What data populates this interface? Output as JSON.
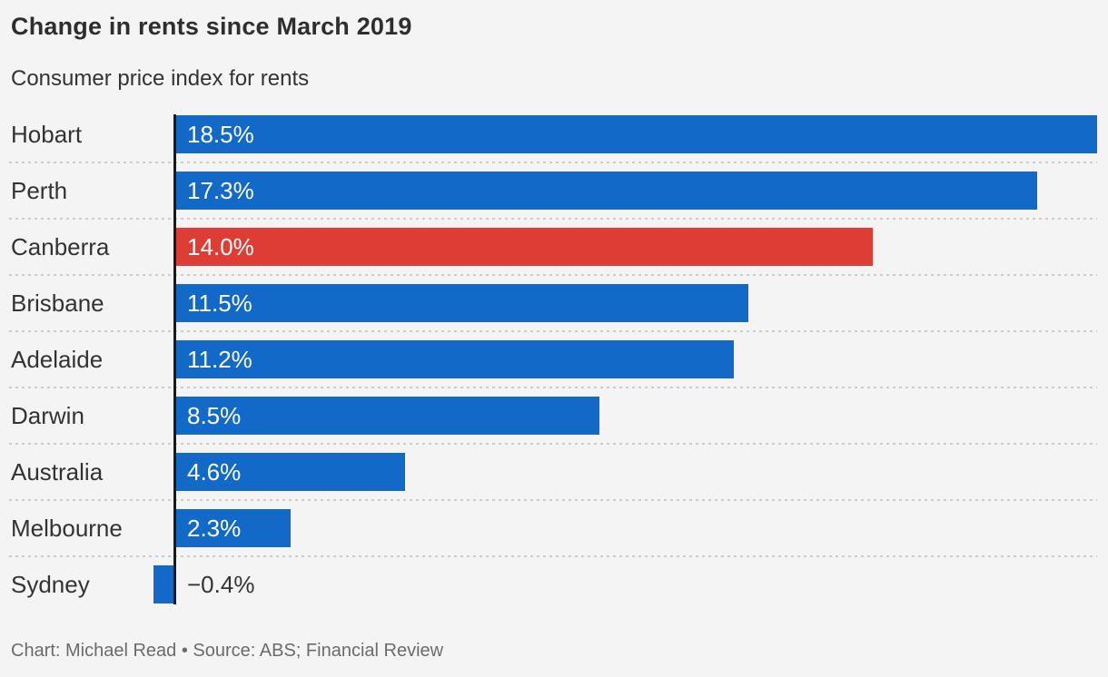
{
  "header": {
    "title": "Change in rents since March 2019",
    "subtitle": "Consumer price index for rents"
  },
  "footer": {
    "attribution": "Chart: Michael Read • Source: ABS; Financial Review"
  },
  "colors": {
    "background": "#f4f4f4",
    "bar_default": "#1269c7",
    "bar_highlight": "#de3d35",
    "value_label_inside": "#ffffff",
    "value_label_outside": "#333333",
    "text": "#333333",
    "muted_text": "#6b6b6b",
    "separator": "#cccccc",
    "axis": "#1a1a1a"
  },
  "chart_data": {
    "type": "bar",
    "orientation": "horizontal",
    "title": "Change in rents since March 2019",
    "subtitle": "Consumer price index for rents",
    "categories": [
      "Hobart",
      "Perth",
      "Canberra",
      "Brisbane",
      "Adelaide",
      "Darwin",
      "Australia",
      "Melbourne",
      "Sydney"
    ],
    "values": [
      18.5,
      17.3,
      14.0,
      11.5,
      11.2,
      8.5,
      4.6,
      2.3,
      -0.4
    ],
    "value_labels": [
      "18.5%",
      "17.3%",
      "14.0%",
      "11.5%",
      "11.2%",
      "8.5%",
      "4.6%",
      "2.3%",
      "−0.4%"
    ],
    "highlight_index": 2,
    "xlim": [
      -0.4,
      18.5
    ],
    "xlabel": "",
    "ylabel": "",
    "grid": "dotted-row-separators",
    "legend": "none",
    "source": "Chart: Michael Read • Source: ABS; Financial Review"
  }
}
